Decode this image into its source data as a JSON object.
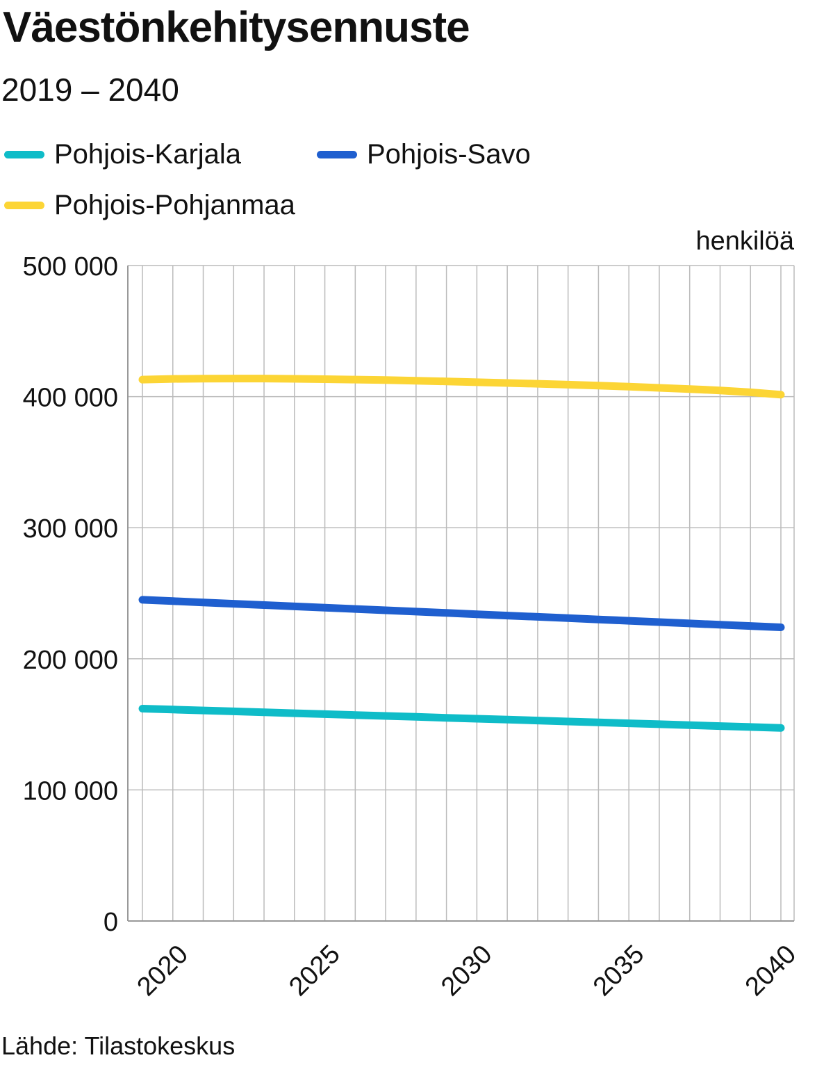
{
  "title": "Väestönkehitysennuste",
  "subtitle": "2019 – 2040",
  "unit_label": "henkilöä",
  "source": "Lähde: Tilastokeskus",
  "legend": [
    {
      "label": "Pohjois-Karjala",
      "color": "#0fbcc8"
    },
    {
      "label": "Pohjois-Savo",
      "color": "#1f5fcf"
    },
    {
      "label": "Pohjois-Pohjanmaa",
      "color": "#fcd535"
    }
  ],
  "chart_data": {
    "type": "line",
    "x": [
      2019,
      2020,
      2021,
      2022,
      2023,
      2024,
      2025,
      2026,
      2027,
      2028,
      2029,
      2030,
      2031,
      2032,
      2033,
      2034,
      2035,
      2036,
      2037,
      2038,
      2039,
      2040
    ],
    "series": [
      {
        "name": "Pohjois-Karjala",
        "color": "#0fbcc8",
        "values": [
          162000,
          161300,
          160600,
          159900,
          159200,
          158500,
          157800,
          157100,
          156400,
          155700,
          155000,
          154300,
          153600,
          152900,
          152200,
          151500,
          150800,
          150100,
          149400,
          148700,
          148000,
          147300
        ]
      },
      {
        "name": "Pohjois-Savo",
        "color": "#1f5fcf",
        "values": [
          245000,
          244000,
          243000,
          242000,
          241000,
          240000,
          239000,
          238000,
          237000,
          236000,
          235000,
          234000,
          233000,
          232000,
          231000,
          230000,
          229000,
          228000,
          227000,
          226000,
          225000,
          224000
        ]
      },
      {
        "name": "Pohjois-Pohjanmaa",
        "color": "#fcd535",
        "values": [
          413000,
          413500,
          413700,
          413800,
          413800,
          413600,
          413300,
          413000,
          412600,
          412100,
          411600,
          411000,
          410400,
          409800,
          409100,
          408400,
          407600,
          406700,
          405800,
          404700,
          403300,
          401500
        ]
      }
    ],
    "xticks": [
      "2020",
      "2025",
      "2030",
      "2035",
      "2040"
    ],
    "yticks": [
      "0",
      "100 000",
      "200 000",
      "300 000",
      "400 000",
      "500 000"
    ],
    "ylim": [
      0,
      500000
    ],
    "xlim": [
      2019,
      2040
    ],
    "grid": true,
    "legend_position": "top"
  }
}
